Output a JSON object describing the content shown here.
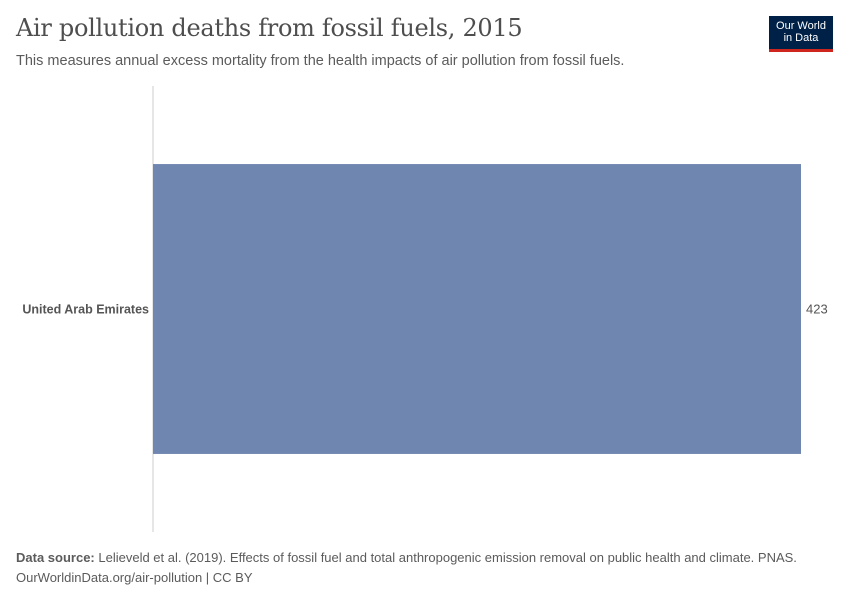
{
  "header": {
    "title": "Air pollution deaths from fossil fuels, 2015",
    "subtitle": "This measures annual excess mortality from the health impacts of air pollution from fossil fuels.",
    "logo_line1": "Our World",
    "logo_line2": "in Data"
  },
  "chart_data": {
    "type": "bar",
    "orientation": "horizontal",
    "title": "Air pollution deaths from fossil fuels, 2015",
    "categories": [
      "United Arab Emirates"
    ],
    "values": [
      423
    ],
    "value_labels": [
      "423"
    ],
    "xlabel": "",
    "ylabel": "",
    "xlim": [
      0,
      423
    ],
    "grid": false,
    "colors": {
      "bar": "#6f87b0",
      "axis": "#cccccc",
      "label": "#555555"
    }
  },
  "footer": {
    "source_label": "Data source:",
    "source_text": "Lelieveld et al. (2019). Effects of fossil fuel and total anthropogenic emission removal on public health and climate. PNAS.",
    "url_line": "OurWorldinData.org/air-pollution | CC BY"
  }
}
